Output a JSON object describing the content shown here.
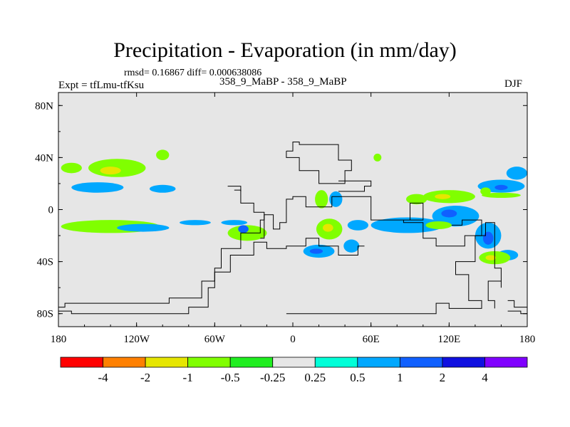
{
  "chart_data": {
    "type": "contour-map",
    "title": "Precipitation - Evaporation (in mm/day)",
    "stats_text": "rmsd= 0.16867 diff= 0.000638086",
    "experiment_label": "Expt = tfLmu-tfKsu",
    "comparison_label": "358_9_MaBP - 358_9_MaBP",
    "season": "DJF",
    "x_range": [
      -180,
      180
    ],
    "y_range": [
      -90,
      90
    ],
    "x_ticks": [
      {
        "value": -180,
        "label": "180"
      },
      {
        "value": -120,
        "label": "120W"
      },
      {
        "value": -60,
        "label": "60W"
      },
      {
        "value": 0,
        "label": "0"
      },
      {
        "value": 60,
        "label": "60E"
      },
      {
        "value": 120,
        "label": "120E"
      },
      {
        "value": 180,
        "label": "180"
      }
    ],
    "y_ticks": [
      {
        "value": 80,
        "label": "80N"
      },
      {
        "value": 40,
        "label": "40N"
      },
      {
        "value": 0,
        "label": "0"
      },
      {
        "value": -40,
        "label": "40S"
      },
      {
        "value": -80,
        "label": "80S"
      }
    ],
    "colorbar": {
      "colors": [
        "#ff0000",
        "#ff8000",
        "#e6e600",
        "#80ff00",
        "#20ee20",
        "#e6e6e6",
        "#00ffd8",
        "#00a8ff",
        "#1060ff",
        "#1010e0",
        "#8000ff"
      ],
      "labels": [
        "-4",
        "-2",
        "-1",
        "-0.5",
        "-0.25",
        "0.25",
        "0.5",
        "1",
        "2",
        "4"
      ]
    },
    "anomaly_patches": [
      {
        "lon": -170,
        "lat": 32,
        "rlon": 8,
        "rlat": 4,
        "level": -0.5
      },
      {
        "lon": -135,
        "lat": 32,
        "rlon": 22,
        "rlat": 7,
        "level": -0.5
      },
      {
        "lon": -140,
        "lat": 30,
        "rlon": 8,
        "rlat": 3,
        "level": -1
      },
      {
        "lon": -100,
        "lat": 42,
        "rlon": 5,
        "rlat": 4,
        "level": -0.5
      },
      {
        "lon": -150,
        "lat": 17,
        "rlon": 20,
        "rlat": 4,
        "level": 0.5
      },
      {
        "lon": -100,
        "lat": 16,
        "rlon": 10,
        "rlat": 3,
        "level": 0.5
      },
      {
        "lon": -140,
        "lat": -13,
        "rlon": 38,
        "rlat": 5,
        "level": -0.5
      },
      {
        "lon": -115,
        "lat": -14,
        "rlon": 20,
        "rlat": 3,
        "level": 0.5
      },
      {
        "lon": -75,
        "lat": -10,
        "rlon": 12,
        "rlat": 2,
        "level": 0.5
      },
      {
        "lon": -45,
        "lat": -10,
        "rlon": 10,
        "rlat": 2,
        "level": 0.5
      },
      {
        "lon": -35,
        "lat": -18,
        "rlon": 15,
        "rlat": 6,
        "level": -0.5
      },
      {
        "lon": -38,
        "lat": -15,
        "rlon": 4,
        "rlat": 3,
        "level": 1
      },
      {
        "lon": 22,
        "lat": 8,
        "rlon": 5,
        "rlat": 7,
        "level": -0.5
      },
      {
        "lon": 33,
        "lat": 8,
        "rlon": 5,
        "rlat": 6,
        "level": 0.5
      },
      {
        "lon": 28,
        "lat": -15,
        "rlon": 10,
        "rlat": 8,
        "level": -0.5
      },
      {
        "lon": 27,
        "lat": -14,
        "rlon": 4,
        "rlat": 3,
        "level": -1
      },
      {
        "lon": 20,
        "lat": -32,
        "rlon": 12,
        "rlat": 5,
        "level": 0.5
      },
      {
        "lon": 18,
        "lat": -32,
        "rlon": 5,
        "rlat": 2,
        "level": 1
      },
      {
        "lon": 45,
        "lat": -28,
        "rlon": 6,
        "rlat": 5,
        "level": 0.5
      },
      {
        "lon": 50,
        "lat": -12,
        "rlon": 8,
        "rlat": 4,
        "level": 0.5
      },
      {
        "lon": 88,
        "lat": -12,
        "rlon": 28,
        "rlat": 6,
        "level": 0.5
      },
      {
        "lon": 120,
        "lat": 10,
        "rlon": 20,
        "rlat": 5,
        "level": -0.5
      },
      {
        "lon": 115,
        "lat": 10,
        "rlon": 6,
        "rlat": 2,
        "level": -1
      },
      {
        "lon": 95,
        "lat": 8,
        "rlon": 8,
        "rlat": 4,
        "level": -0.5
      },
      {
        "lon": 125,
        "lat": -5,
        "rlon": 18,
        "rlat": 8,
        "level": 0.5
      },
      {
        "lon": 120,
        "lat": -3,
        "rlon": 6,
        "rlat": 3,
        "level": 1
      },
      {
        "lon": 112,
        "lat": -12,
        "rlon": 10,
        "rlat": 3,
        "level": -0.5
      },
      {
        "lon": 150,
        "lat": -20,
        "rlon": 10,
        "rlat": 10,
        "level": 0.5
      },
      {
        "lon": 150,
        "lat": -22,
        "rlon": 4,
        "rlat": 5,
        "level": 1
      },
      {
        "lon": 165,
        "lat": -35,
        "rlon": 8,
        "rlat": 4,
        "level": 0.5
      },
      {
        "lon": 155,
        "lat": -37,
        "rlon": 12,
        "rlat": 5,
        "level": -0.5
      },
      {
        "lon": 152,
        "lat": -37,
        "rlon": 4,
        "rlat": 2,
        "level": -1
      },
      {
        "lon": 160,
        "lat": 18,
        "rlon": 18,
        "rlat": 5,
        "level": 0.5
      },
      {
        "lon": 160,
        "lat": 17,
        "rlon": 5,
        "rlat": 2,
        "level": 1
      },
      {
        "lon": 172,
        "lat": 28,
        "rlon": 8,
        "rlat": 5,
        "level": 0.5
      },
      {
        "lon": 148,
        "lat": 14,
        "rlon": 4,
        "rlat": 3,
        "level": -0.5
      },
      {
        "lon": 160,
        "lat": 11,
        "rlon": 15,
        "rlat": 2,
        "level": -0.5
      },
      {
        "lon": 65,
        "lat": 40,
        "rlon": 3,
        "rlat": 3,
        "level": -0.5
      }
    ],
    "coastline_paths": [
      [
        [
          -25,
          -22
        ],
        [
          -22,
          -22
        ],
        [
          -22,
          -4
        ],
        [
          -15,
          -4
        ],
        [
          -15,
          -15
        ],
        [
          -10,
          -15
        ],
        [
          -10,
          -10
        ],
        [
          -5,
          -10
        ],
        [
          -5,
          8
        ],
        [
          0,
          8
        ],
        [
          0,
          10
        ],
        [
          10,
          10
        ],
        [
          10,
          2
        ],
        [
          30,
          2
        ],
        [
          30,
          10
        ],
        [
          60,
          10
        ],
        [
          60,
          -8
        ],
        [
          90,
          -8
        ],
        [
          90,
          5
        ],
        [
          100,
          5
        ],
        [
          100,
          -8
        ],
        [
          85,
          -8
        ],
        [
          85,
          -10
        ],
        [
          100,
          -10
        ],
        [
          100,
          -22
        ],
        [
          110,
          -22
        ],
        [
          110,
          -28
        ],
        [
          132,
          -28
        ],
        [
          132,
          -20
        ],
        [
          145,
          -20
        ],
        [
          145,
          -8
        ],
        [
          130,
          -8
        ],
        [
          130,
          -12
        ],
        [
          122,
          -12
        ]
      ],
      [
        [
          -45,
          15
        ],
        [
          -40,
          15
        ],
        [
          -40,
          5
        ],
        [
          -30,
          5
        ],
        [
          -30,
          -2
        ],
        [
          -22,
          -2
        ],
        [
          -22,
          -8
        ],
        [
          -25,
          -8
        ],
        [
          -25,
          -18
        ],
        [
          -40,
          -18
        ],
        [
          -40,
          -30
        ],
        [
          -55,
          -30
        ],
        [
          -55,
          -45
        ],
        [
          -60,
          -45
        ],
        [
          -60,
          -55
        ],
        [
          -70,
          -55
        ],
        [
          -70,
          -68
        ],
        [
          -95,
          -68
        ],
        [
          -95,
          -72
        ],
        [
          -175,
          -72
        ],
        [
          -175,
          -75
        ],
        [
          -180,
          -75
        ]
      ],
      [
        [
          -180,
          -78
        ],
        [
          -170,
          -78
        ],
        [
          -170,
          -80
        ],
        [
          -80,
          -80
        ],
        [
          -80,
          -75
        ],
        [
          -65,
          -75
        ],
        [
          -65,
          -60
        ],
        [
          -60,
          -60
        ],
        [
          -60,
          -48
        ],
        [
          -48,
          -48
        ],
        [
          -48,
          -35
        ],
        [
          -30,
          -35
        ],
        [
          -30,
          -25
        ],
        [
          -20,
          -25
        ],
        [
          -20,
          -30
        ],
        [
          -5,
          -30
        ],
        [
          -5,
          -28
        ],
        [
          10,
          -28
        ],
        [
          10,
          -22
        ],
        [
          20,
          -22
        ],
        [
          20,
          -28
        ],
        [
          35,
          -28
        ],
        [
          35,
          -35
        ],
        [
          50,
          -35
        ],
        [
          50,
          -28
        ],
        [
          55,
          -28
        ]
      ],
      [
        [
          -5,
          -80
        ],
        [
          110,
          -80
        ],
        [
          110,
          -72
        ],
        [
          120,
          -72
        ],
        [
          120,
          -76
        ],
        [
          145,
          -76
        ],
        [
          145,
          -70
        ],
        [
          135,
          -70
        ],
        [
          135,
          -50
        ],
        [
          125,
          -50
        ],
        [
          125,
          -40
        ],
        [
          140,
          -40
        ],
        [
          140,
          -20
        ],
        [
          148,
          -20
        ],
        [
          148,
          -10
        ],
        [
          155,
          -10
        ],
        [
          155,
          -45
        ],
        [
          160,
          -45
        ],
        [
          160,
          -55
        ],
        [
          150,
          -55
        ],
        [
          150,
          -70
        ],
        [
          155,
          -70
        ],
        [
          155,
          -76
        ]
      ],
      [
        [
          -5,
          45
        ],
        [
          0,
          45
        ],
        [
          0,
          52
        ],
        [
          5,
          52
        ],
        [
          5,
          50
        ],
        [
          35,
          50
        ],
        [
          35,
          38
        ],
        [
          45,
          38
        ],
        [
          45,
          30
        ],
        [
          40,
          30
        ],
        [
          40,
          20
        ],
        [
          20,
          20
        ],
        [
          20,
          30
        ],
        [
          5,
          30
        ],
        [
          5,
          40
        ],
        [
          -5,
          40
        ],
        [
          -5,
          45
        ]
      ],
      [
        [
          35,
          22
        ],
        [
          60,
          22
        ],
        [
          60,
          18
        ],
        [
          55,
          18
        ],
        [
          55,
          14
        ],
        [
          35,
          14
        ]
      ],
      [
        [
          -50,
          18
        ],
        [
          -40,
          18
        ],
        [
          -40,
          14
        ]
      ],
      [
        [
          165,
          -70
        ],
        [
          170,
          -70
        ],
        [
          170,
          -75
        ],
        [
          180,
          -75
        ]
      ],
      [
        [
          165,
          -78
        ],
        [
          175,
          -78
        ],
        [
          175,
          -80
        ],
        [
          180,
          -80
        ]
      ],
      [
        [
          150,
          -55
        ],
        [
          160,
          -55
        ],
        [
          160,
          -60
        ]
      ]
    ]
  }
}
